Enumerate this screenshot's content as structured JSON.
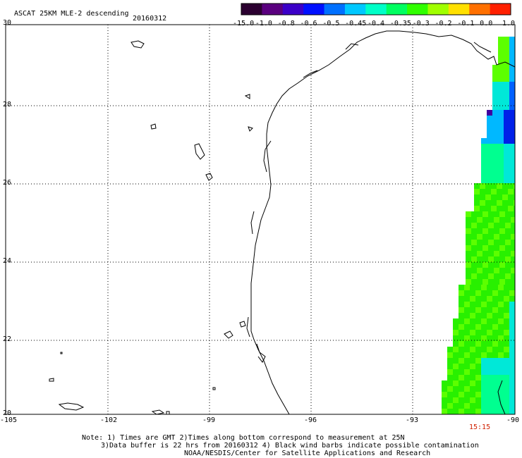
{
  "header": {
    "title": "ASCAT 25KM MLE-2 descending",
    "date": "20160312"
  },
  "colorbar": {
    "labels": [
      "-15.0",
      "-1.0",
      "-0.8",
      "-0.6",
      "-0.5",
      "-0.45",
      "-0.4",
      "-0.35",
      "-0.3",
      "-0.2",
      "-0.1",
      "0.0",
      "1.0"
    ],
    "colors": [
      "#2b0030",
      "#5a007f",
      "#3b00c8",
      "#0010ff",
      "#0070ff",
      "#00c8ff",
      "#00ffc8",
      "#00ff60",
      "#30ff00",
      "#a0ff00",
      "#ffe000",
      "#ff7000",
      "#ff2000"
    ]
  },
  "axes": {
    "lon_ticks": [
      "-105",
      "-102",
      "-99",
      "-96",
      "-93",
      "-90"
    ],
    "lat_ticks": [
      "30",
      "28",
      "26",
      "24",
      "22",
      "20"
    ]
  },
  "time_label": "15:15",
  "notes": {
    "line1": "Note: 1) Times are GMT 2)Times along bottom correspond to measurement at 25N",
    "line2": "3)Data buffer is 22 hrs from 20160312 4) Black wind barbs indicate possible contamination",
    "line3": "NOAA/NESDIS/Center for Satellite Applications and Research"
  }
}
